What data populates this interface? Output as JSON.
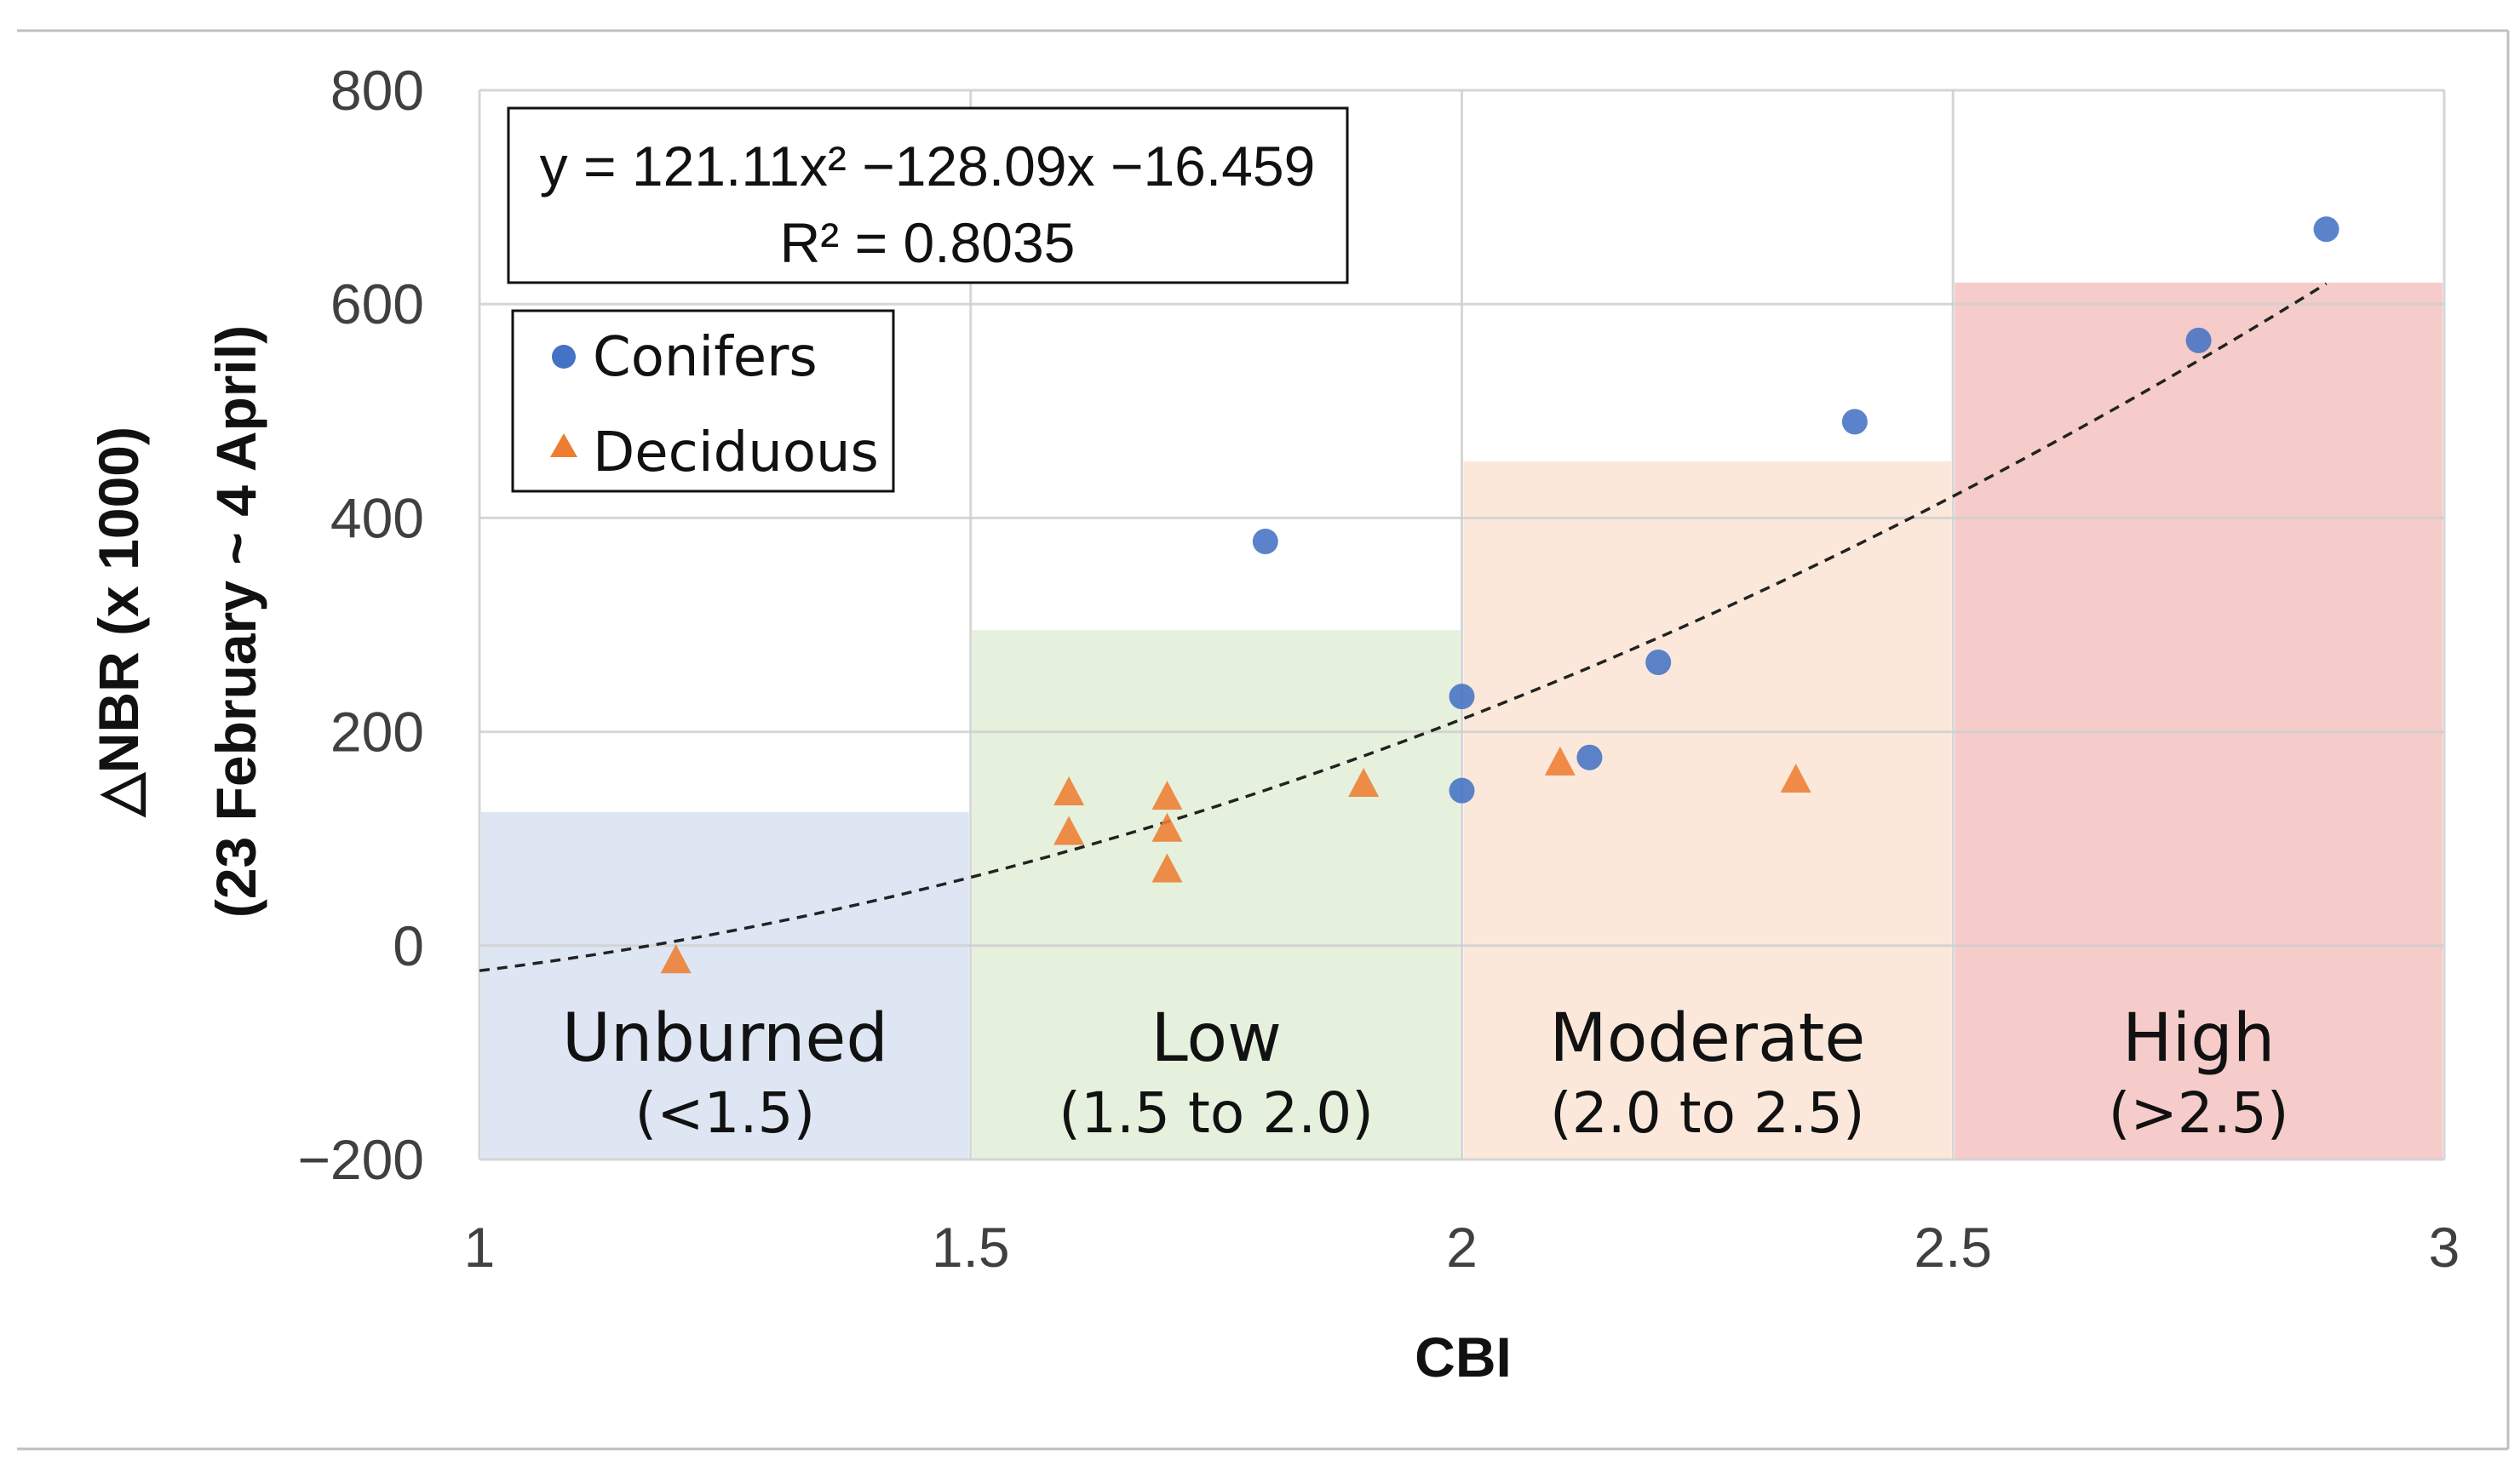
{
  "chart_data": {
    "type": "scatter",
    "title": "",
    "xlabel": "CBI",
    "ylabel": "△NBR (x 1000)",
    "ylabel_sub": "(23 February ~ 4 April)",
    "xlim": [
      1,
      3
    ],
    "ylim": [
      -200,
      800
    ],
    "x_ticks": [
      1,
      1.5,
      2,
      2.5,
      3
    ],
    "x_tick_labels": [
      "1",
      "1.5",
      "2",
      "2.5",
      "3"
    ],
    "y_ticks": [
      -200,
      0,
      200,
      400,
      600,
      800
    ],
    "y_tick_labels": [
      "−200",
      "0",
      "200",
      "400",
      "600",
      "800"
    ],
    "grid": true,
    "series": [
      {
        "name": "Conifers",
        "marker": "circle",
        "color": "#4472C4",
        "points": [
          [
            1.8,
            378
          ],
          [
            2.0,
            233
          ],
          [
            2.0,
            145
          ],
          [
            2.13,
            176
          ],
          [
            2.2,
            265
          ],
          [
            2.4,
            490
          ],
          [
            2.75,
            566
          ],
          [
            2.88,
            670
          ]
        ]
      },
      {
        "name": "Deciduous",
        "marker": "triangle",
        "color": "#ED7D31",
        "points": [
          [
            1.2,
            -15
          ],
          [
            1.6,
            142
          ],
          [
            1.6,
            105
          ],
          [
            1.7,
            138
          ],
          [
            1.7,
            108
          ],
          [
            1.7,
            70
          ],
          [
            1.9,
            150
          ],
          [
            2.1,
            170
          ],
          [
            2.34,
            154
          ]
        ]
      }
    ],
    "trendline": {
      "type": "polynomial",
      "a": 121.11,
      "b": -128.09,
      "c": -16.459,
      "x_range": [
        1,
        2.88
      ],
      "style": "dashed",
      "equation_text": "y = 121.11x² −128.09x −16.459",
      "r2_text": "R² = 0.8035"
    },
    "bands": [
      {
        "label": "Unburned",
        "range_text": "(<1.5)",
        "x0": 1.0,
        "x1": 1.5,
        "top": 125,
        "color": "#DAE3F3"
      },
      {
        "label": "Low",
        "range_text": "(1.5 to 2.0)",
        "x0": 1.5,
        "x1": 2.0,
        "top": 295,
        "color": "#E2F0D9"
      },
      {
        "label": "Moderate",
        "range_text": "(2.0 to 2.5)",
        "x0": 2.0,
        "x1": 2.5,
        "top": 453,
        "color": "#FBE5D6"
      },
      {
        "label": "High",
        "range_text": "(>2.5)",
        "x0": 2.5,
        "x1": 3.0,
        "top": 620,
        "color": "#F4C7C3"
      }
    ],
    "legend": {
      "position": "top-left",
      "entries": [
        "Conifers",
        "Deciduous"
      ]
    }
  }
}
